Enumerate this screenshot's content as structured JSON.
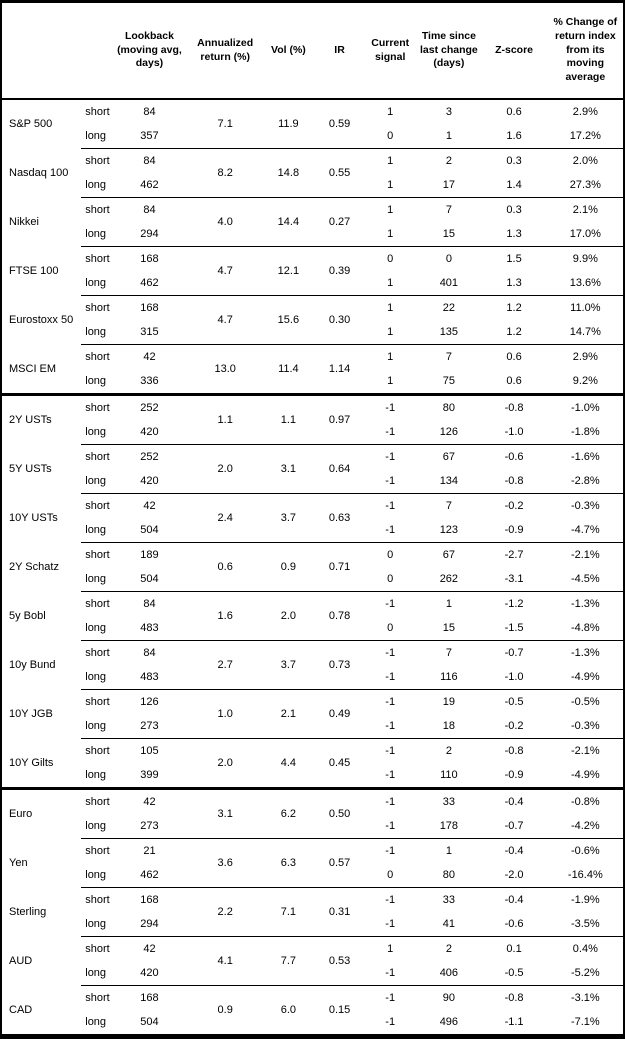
{
  "table": {
    "header": {
      "asset": "",
      "leg": "",
      "lookback": "Lookback (moving avg, days)",
      "ann_return": "Annualized return (%)",
      "vol": "Vol (%)",
      "ir": "IR",
      "signal": "Current signal",
      "time_since": "Time since last change (days)",
      "z_score": "Z-score",
      "pct_change": "% Change of return index from its moving average"
    },
    "leg_labels": {
      "short": "short",
      "long": "long"
    },
    "groups": [
      {
        "name": "S&P 500",
        "ann": "7.1",
        "vol": "11.9",
        "ir": "0.59",
        "short": {
          "lookback": "84",
          "signal": "1",
          "time": "3",
          "z": "0.6",
          "pct": "2.9%"
        },
        "long": {
          "lookback": "357",
          "signal": "0",
          "time": "1",
          "z": "1.6",
          "pct": "17.2%"
        }
      },
      {
        "name": "Nasdaq 100",
        "ann": "8.2",
        "vol": "14.8",
        "ir": "0.55",
        "short": {
          "lookback": "84",
          "signal": "1",
          "time": "2",
          "z": "0.3",
          "pct": "2.0%"
        },
        "long": {
          "lookback": "462",
          "signal": "1",
          "time": "17",
          "z": "1.4",
          "pct": "27.3%"
        }
      },
      {
        "name": "Nikkei",
        "ann": "4.0",
        "vol": "14.4",
        "ir": "0.27",
        "short": {
          "lookback": "84",
          "signal": "1",
          "time": "7",
          "z": "0.3",
          "pct": "2.1%"
        },
        "long": {
          "lookback": "294",
          "signal": "1",
          "time": "15",
          "z": "1.3",
          "pct": "17.0%"
        }
      },
      {
        "name": "FTSE 100",
        "ann": "4.7",
        "vol": "12.1",
        "ir": "0.39",
        "short": {
          "lookback": "168",
          "signal": "0",
          "time": "0",
          "z": "1.5",
          "pct": "9.9%"
        },
        "long": {
          "lookback": "462",
          "signal": "1",
          "time": "401",
          "z": "1.3",
          "pct": "13.6%"
        }
      },
      {
        "name": "Eurostoxx 50",
        "ann": "4.7",
        "vol": "15.6",
        "ir": "0.30",
        "short": {
          "lookback": "168",
          "signal": "1",
          "time": "22",
          "z": "1.2",
          "pct": "11.0%"
        },
        "long": {
          "lookback": "315",
          "signal": "1",
          "time": "135",
          "z": "1.2",
          "pct": "14.7%"
        }
      },
      {
        "name": "MSCI EM",
        "ann": "13.0",
        "vol": "11.4",
        "ir": "1.14",
        "section_end": true,
        "short": {
          "lookback": "42",
          "signal": "1",
          "time": "7",
          "z": "0.6",
          "pct": "2.9%"
        },
        "long": {
          "lookback": "336",
          "signal": "1",
          "time": "75",
          "z": "0.6",
          "pct": "9.2%"
        }
      },
      {
        "name": "2Y USTs",
        "ann": "1.1",
        "vol": "1.1",
        "ir": "0.97",
        "short": {
          "lookback": "252",
          "signal": "-1",
          "time": "80",
          "z": "-0.8",
          "pct": "-1.0%"
        },
        "long": {
          "lookback": "420",
          "signal": "-1",
          "time": "126",
          "z": "-1.0",
          "pct": "-1.8%"
        }
      },
      {
        "name": "5Y USTs",
        "ann": "2.0",
        "vol": "3.1",
        "ir": "0.64",
        "short": {
          "lookback": "252",
          "signal": "-1",
          "time": "67",
          "z": "-0.6",
          "pct": "-1.6%"
        },
        "long": {
          "lookback": "420",
          "signal": "-1",
          "time": "134",
          "z": "-0.8",
          "pct": "-2.8%"
        }
      },
      {
        "name": "10Y USTs",
        "ann": "2.4",
        "vol": "3.7",
        "ir": "0.63",
        "short": {
          "lookback": "42",
          "signal": "-1",
          "time": "7",
          "z": "-0.2",
          "pct": "-0.3%"
        },
        "long": {
          "lookback": "504",
          "signal": "-1",
          "time": "123",
          "z": "-0.9",
          "pct": "-4.7%"
        }
      },
      {
        "name": "2Y Schatz",
        "ann": "0.6",
        "vol": "0.9",
        "ir": "0.71",
        "short": {
          "lookback": "189",
          "signal": "0",
          "time": "67",
          "z": "-2.7",
          "pct": "-2.1%"
        },
        "long": {
          "lookback": "504",
          "signal": "0",
          "time": "262",
          "z": "-3.1",
          "pct": "-4.5%"
        }
      },
      {
        "name": "5y Bobl",
        "ann": "1.6",
        "vol": "2.0",
        "ir": "0.78",
        "short": {
          "lookback": "84",
          "signal": "-1",
          "time": "1",
          "z": "-1.2",
          "pct": "-1.3%"
        },
        "long": {
          "lookback": "483",
          "signal": "0",
          "time": "15",
          "z": "-1.5",
          "pct": "-4.8%"
        }
      },
      {
        "name": "10y Bund",
        "ann": "2.7",
        "vol": "3.7",
        "ir": "0.73",
        "short": {
          "lookback": "84",
          "signal": "-1",
          "time": "7",
          "z": "-0.7",
          "pct": "-1.3%"
        },
        "long": {
          "lookback": "483",
          "signal": "-1",
          "time": "116",
          "z": "-1.0",
          "pct": "-4.9%"
        }
      },
      {
        "name": "10Y JGB",
        "ann": "1.0",
        "vol": "2.1",
        "ir": "0.49",
        "short": {
          "lookback": "126",
          "signal": "-1",
          "time": "19",
          "z": "-0.5",
          "pct": "-0.5%"
        },
        "long": {
          "lookback": "273",
          "signal": "-1",
          "time": "18",
          "z": "-0.2",
          "pct": "-0.3%"
        }
      },
      {
        "name": "10Y Gilts",
        "ann": "2.0",
        "vol": "4.4",
        "ir": "0.45",
        "section_end": true,
        "short": {
          "lookback": "105",
          "signal": "-1",
          "time": "2",
          "z": "-0.8",
          "pct": "-2.1%"
        },
        "long": {
          "lookback": "399",
          "signal": "-1",
          "time": "110",
          "z": "-0.9",
          "pct": "-4.9%"
        }
      },
      {
        "name": "Euro",
        "ann": "3.1",
        "vol": "6.2",
        "ir": "0.50",
        "short": {
          "lookback": "42",
          "signal": "-1",
          "time": "33",
          "z": "-0.4",
          "pct": "-0.8%"
        },
        "long": {
          "lookback": "273",
          "signal": "-1",
          "time": "178",
          "z": "-0.7",
          "pct": "-4.2%"
        }
      },
      {
        "name": "Yen",
        "ann": "3.6",
        "vol": "6.3",
        "ir": "0.57",
        "short": {
          "lookback": "21",
          "signal": "-1",
          "time": "1",
          "z": "-0.4",
          "pct": "-0.6%"
        },
        "long": {
          "lookback": "462",
          "signal": "0",
          "time": "80",
          "z": "-2.0",
          "pct": "-16.4%"
        }
      },
      {
        "name": "Sterling",
        "ann": "2.2",
        "vol": "7.1",
        "ir": "0.31",
        "short": {
          "lookback": "168",
          "signal": "-1",
          "time": "33",
          "z": "-0.4",
          "pct": "-1.9%"
        },
        "long": {
          "lookback": "294",
          "signal": "-1",
          "time": "41",
          "z": "-0.6",
          "pct": "-3.5%"
        }
      },
      {
        "name": "AUD",
        "ann": "4.1",
        "vol": "7.7",
        "ir": "0.53",
        "short": {
          "lookback": "42",
          "signal": "1",
          "time": "2",
          "z": "0.1",
          "pct": "0.4%"
        },
        "long": {
          "lookback": "420",
          "signal": "-1",
          "time": "406",
          "z": "-0.5",
          "pct": "-5.2%"
        }
      },
      {
        "name": "CAD",
        "ann": "0.9",
        "vol": "6.0",
        "ir": "0.15",
        "short": {
          "lookback": "168",
          "signal": "-1",
          "time": "90",
          "z": "-0.8",
          "pct": "-3.1%"
        },
        "long": {
          "lookback": "504",
          "signal": "-1",
          "time": "496",
          "z": "-1.1",
          "pct": "-7.1%"
        }
      }
    ]
  }
}
